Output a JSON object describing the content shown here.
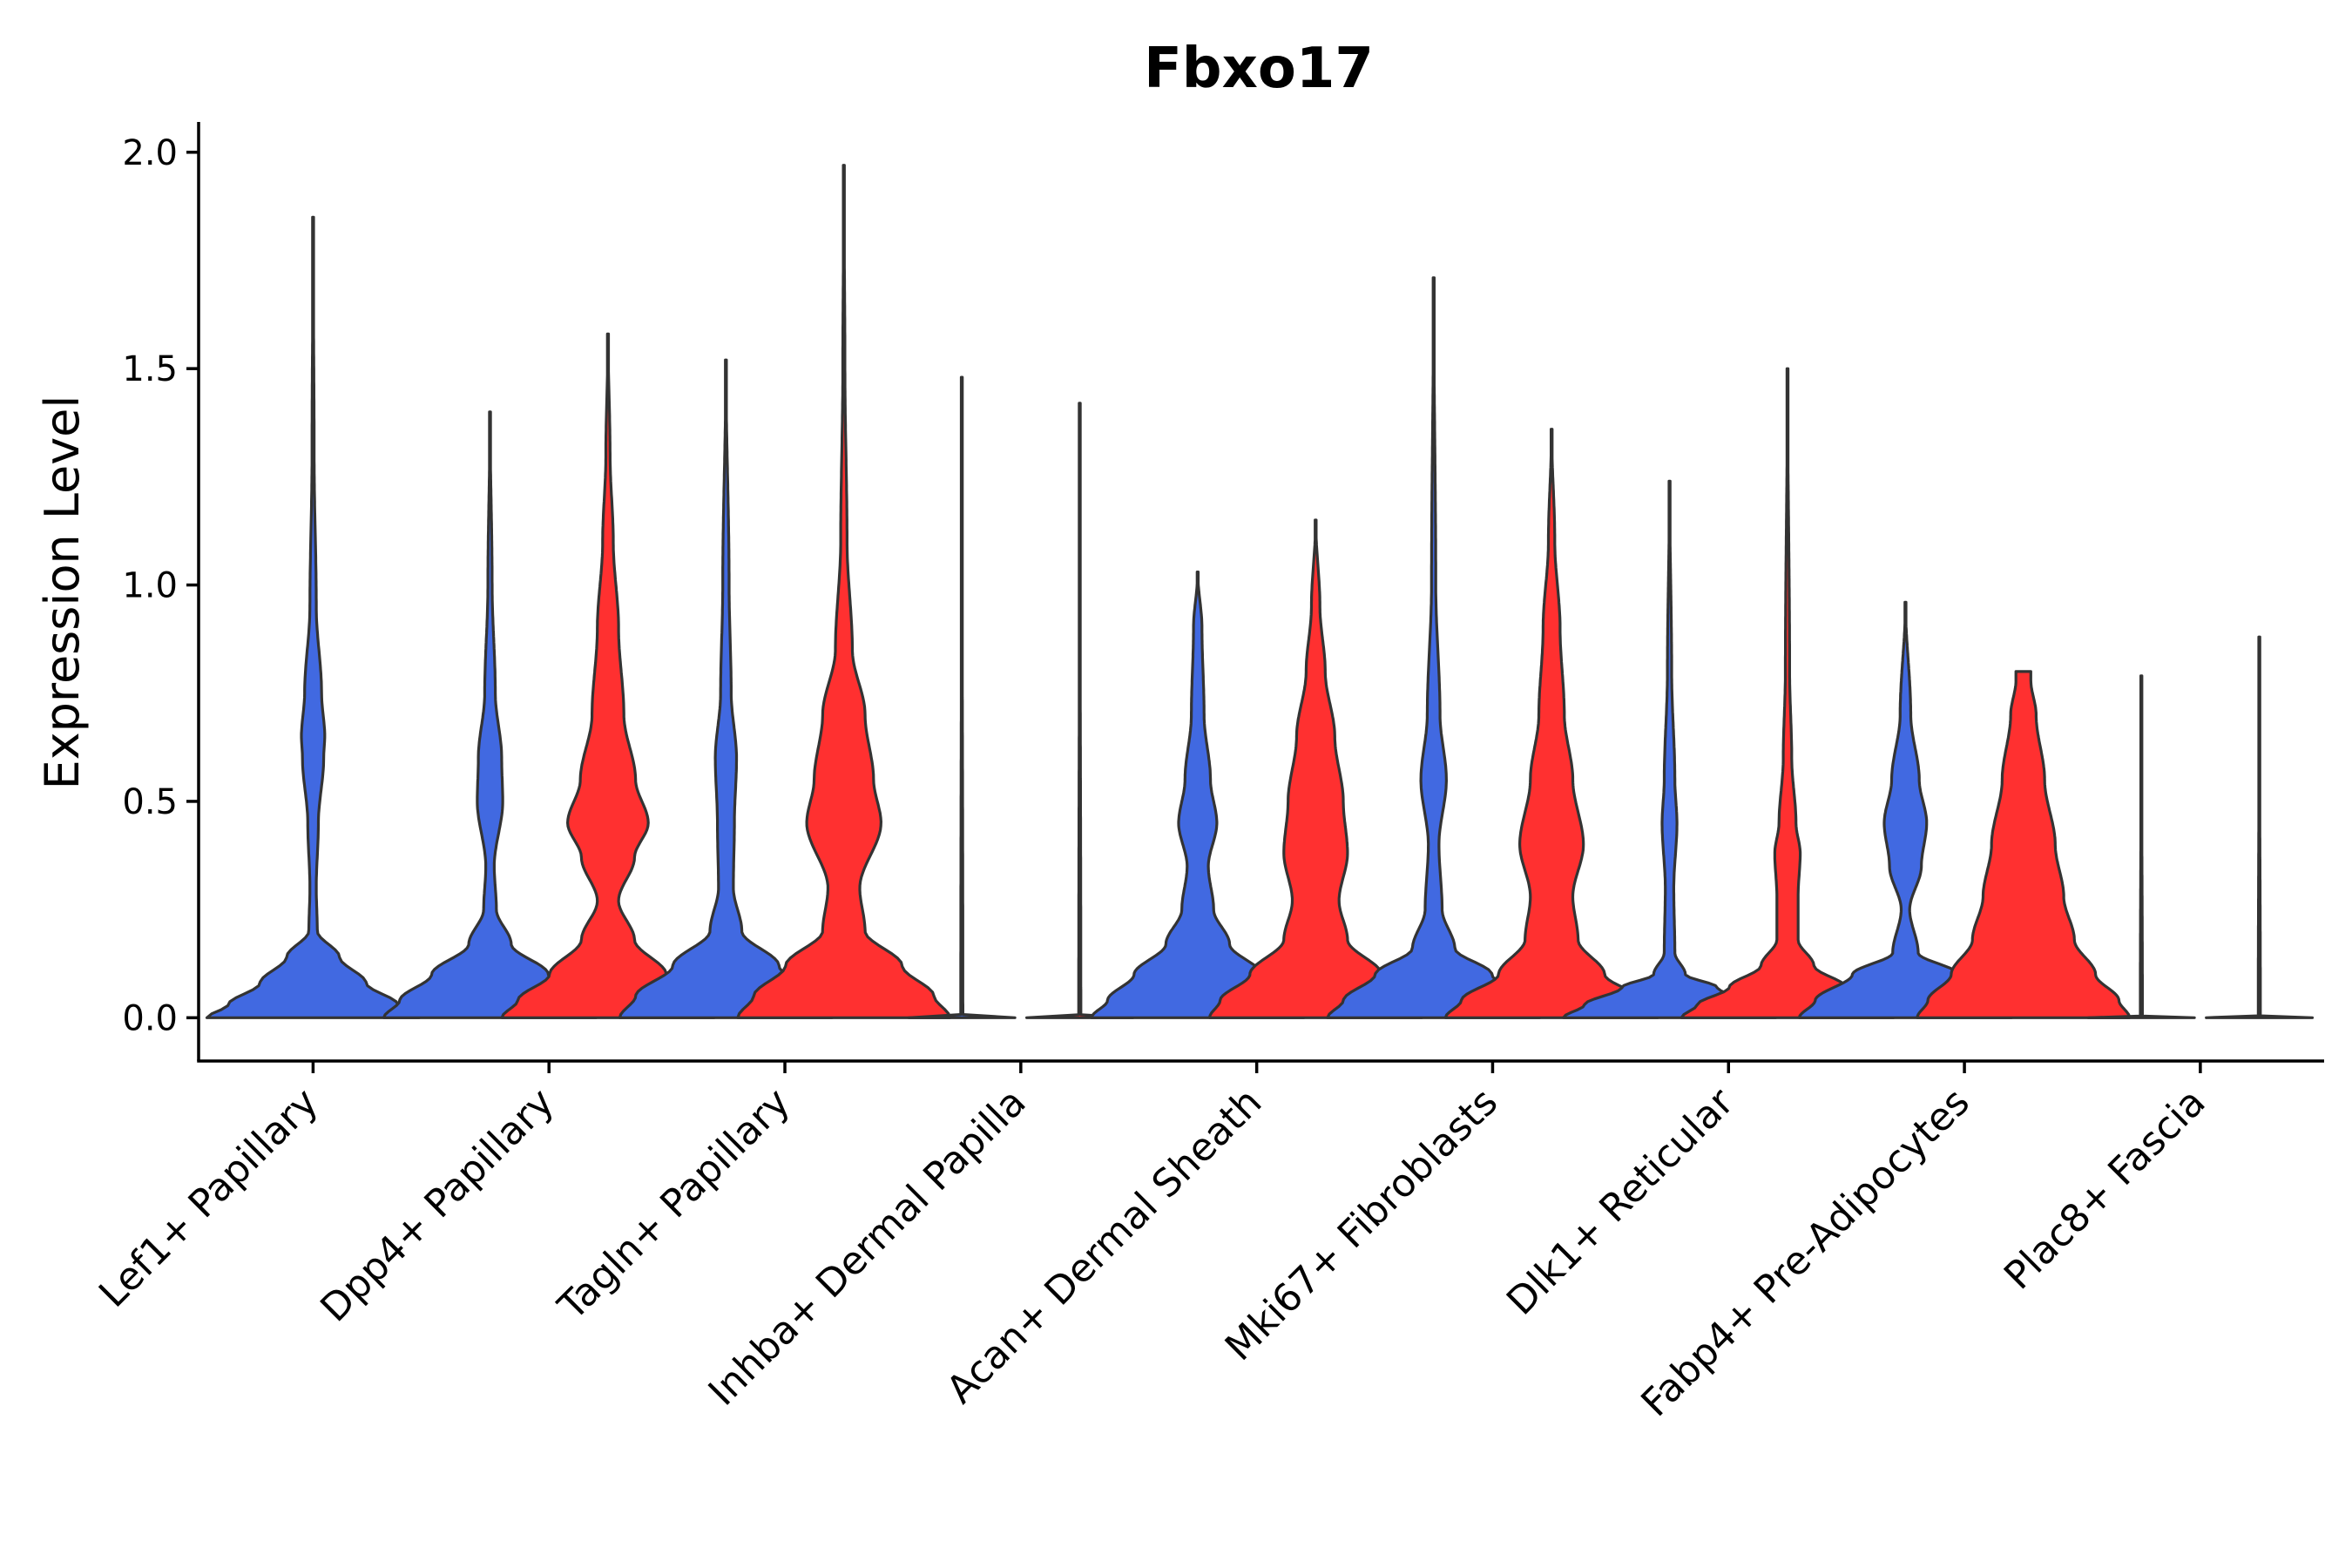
{
  "chart_data": {
    "type": "violin",
    "title": "Fbxo17",
    "ylabel": "Expression Level",
    "xlabel": "",
    "ylim": [
      -0.1,
      2.07
    ],
    "yticks": [
      0.0,
      0.5,
      1.0,
      1.5,
      2.0
    ],
    "ytick_labels": [
      "0.0",
      "0.5",
      "1.0",
      "1.5",
      "2.0"
    ],
    "categories": [
      "Lef1+ Papillary",
      "Dpp4+ Papillary",
      "Tagln+ Papillary",
      "Inhba+ Dermal Papilla",
      "Acan+ Dermal Sheath",
      "Mki67+ Fibroblasts",
      "Dlk1+ Reticular",
      "Fabp4+ Pre-Adipocytes",
      "Plac8+ Fascia"
    ],
    "colors": {
      "blue": "#4169E1",
      "red": "#FF3030"
    },
    "violins": [
      {
        "category": 0,
        "color": "blue",
        "offset": 0,
        "max": 1.85,
        "profile": [
          [
            0,
            1.0
          ],
          [
            0.03,
            0.8
          ],
          [
            0.08,
            0.5
          ],
          [
            0.14,
            0.25
          ],
          [
            0.2,
            0.04
          ],
          [
            0.3,
            0.03
          ],
          [
            0.45,
            0.05
          ],
          [
            0.6,
            0.1
          ],
          [
            0.65,
            0.11
          ],
          [
            0.75,
            0.08
          ],
          [
            0.95,
            0.03
          ],
          [
            1.3,
            0.01
          ],
          [
            1.85,
            0
          ]
        ]
      },
      {
        "category": 1,
        "color": "blue",
        "offset": -0.5,
        "max": 1.4,
        "profile": [
          [
            0,
            1.0
          ],
          [
            0.04,
            0.85
          ],
          [
            0.1,
            0.55
          ],
          [
            0.17,
            0.2
          ],
          [
            0.25,
            0.06
          ],
          [
            0.35,
            0.04
          ],
          [
            0.5,
            0.12
          ],
          [
            0.6,
            0.11
          ],
          [
            0.75,
            0.05
          ],
          [
            1.0,
            0.02
          ],
          [
            1.4,
            0
          ]
        ]
      },
      {
        "category": 1,
        "color": "red",
        "offset": 0.5,
        "max": 1.58,
        "profile": [
          [
            0,
            1.0
          ],
          [
            0.04,
            0.85
          ],
          [
            0.1,
            0.55
          ],
          [
            0.18,
            0.25
          ],
          [
            0.27,
            0.1
          ],
          [
            0.37,
            0.25
          ],
          [
            0.45,
            0.38
          ],
          [
            0.55,
            0.26
          ],
          [
            0.7,
            0.15
          ],
          [
            0.9,
            0.1
          ],
          [
            1.1,
            0.05
          ],
          [
            1.3,
            0.02
          ],
          [
            1.58,
            0
          ]
        ]
      },
      {
        "category": 2,
        "color": "blue",
        "offset": -0.5,
        "max": 1.52,
        "profile": [
          [
            0,
            1.0
          ],
          [
            0.05,
            0.85
          ],
          [
            0.12,
            0.5
          ],
          [
            0.2,
            0.15
          ],
          [
            0.3,
            0.07
          ],
          [
            0.45,
            0.08
          ],
          [
            0.6,
            0.1
          ],
          [
            0.75,
            0.05
          ],
          [
            1.0,
            0.03
          ],
          [
            1.52,
            0
          ]
        ]
      },
      {
        "category": 2,
        "color": "red",
        "offset": 0.5,
        "max": 1.97,
        "profile": [
          [
            0,
            1.0
          ],
          [
            0.05,
            0.85
          ],
          [
            0.12,
            0.55
          ],
          [
            0.2,
            0.2
          ],
          [
            0.3,
            0.15
          ],
          [
            0.45,
            0.35
          ],
          [
            0.55,
            0.28
          ],
          [
            0.7,
            0.2
          ],
          [
            0.85,
            0.08
          ],
          [
            1.1,
            0.03
          ],
          [
            1.5,
            0.01
          ],
          [
            1.97,
            0
          ]
        ]
      },
      {
        "category": 3,
        "color": "blue",
        "offset": -0.5,
        "max": 1.48,
        "profile": [
          [
            0,
            0.5
          ],
          [
            0.003,
            0.01
          ],
          [
            1.48,
            0
          ]
        ]
      },
      {
        "category": 3,
        "color": "red",
        "offset": 0.5,
        "max": 1.42,
        "profile": [
          [
            0,
            0.5
          ],
          [
            0.003,
            0.01
          ],
          [
            1.42,
            0
          ]
        ]
      },
      {
        "category": 4,
        "color": "blue",
        "offset": -0.5,
        "max": 1.03,
        "profile": [
          [
            0,
            1.0
          ],
          [
            0.04,
            0.85
          ],
          [
            0.1,
            0.6
          ],
          [
            0.17,
            0.3
          ],
          [
            0.25,
            0.15
          ],
          [
            0.35,
            0.1
          ],
          [
            0.45,
            0.18
          ],
          [
            0.55,
            0.12
          ],
          [
            0.7,
            0.06
          ],
          [
            0.9,
            0.04
          ],
          [
            1.03,
            0
          ]
        ]
      },
      {
        "category": 4,
        "color": "red",
        "offset": 0.5,
        "max": 1.15,
        "profile": [
          [
            0,
            1.0
          ],
          [
            0.04,
            0.9
          ],
          [
            0.1,
            0.62
          ],
          [
            0.18,
            0.3
          ],
          [
            0.27,
            0.22
          ],
          [
            0.38,
            0.3
          ],
          [
            0.5,
            0.26
          ],
          [
            0.65,
            0.18
          ],
          [
            0.8,
            0.09
          ],
          [
            0.95,
            0.04
          ],
          [
            1.15,
            0
          ]
        ]
      },
      {
        "category": 5,
        "color": "blue",
        "offset": -0.5,
        "max": 1.71,
        "profile": [
          [
            0,
            1.0
          ],
          [
            0.04,
            0.85
          ],
          [
            0.1,
            0.55
          ],
          [
            0.16,
            0.2
          ],
          [
            0.25,
            0.08
          ],
          [
            0.4,
            0.05
          ],
          [
            0.55,
            0.12
          ],
          [
            0.7,
            0.06
          ],
          [
            1.0,
            0.02
          ],
          [
            1.71,
            0
          ]
        ]
      },
      {
        "category": 5,
        "color": "red",
        "offset": 0.5,
        "max": 1.36,
        "profile": [
          [
            0,
            1.0
          ],
          [
            0.04,
            0.85
          ],
          [
            0.1,
            0.5
          ],
          [
            0.18,
            0.25
          ],
          [
            0.28,
            0.2
          ],
          [
            0.4,
            0.3
          ],
          [
            0.55,
            0.2
          ],
          [
            0.7,
            0.12
          ],
          [
            0.9,
            0.08
          ],
          [
            1.1,
            0.03
          ],
          [
            1.36,
            0
          ]
        ]
      },
      {
        "category": 6,
        "color": "blue",
        "offset": -0.5,
        "max": 1.24,
        "profile": [
          [
            0,
            1.0
          ],
          [
            0.03,
            0.8
          ],
          [
            0.07,
            0.45
          ],
          [
            0.1,
            0.15
          ],
          [
            0.15,
            0.05
          ],
          [
            0.3,
            0.04
          ],
          [
            0.45,
            0.07
          ],
          [
            0.55,
            0.05
          ],
          [
            0.8,
            0.02
          ],
          [
            1.24,
            0
          ]
        ]
      },
      {
        "category": 6,
        "color": "red",
        "offset": 0.5,
        "max": 1.5,
        "profile": [
          [
            0,
            1.0
          ],
          [
            0.03,
            0.85
          ],
          [
            0.07,
            0.55
          ],
          [
            0.12,
            0.25
          ],
          [
            0.18,
            0.1
          ],
          [
            0.28,
            0.1
          ],
          [
            0.38,
            0.12
          ],
          [
            0.45,
            0.08
          ],
          [
            0.6,
            0.04
          ],
          [
            0.8,
            0.02
          ],
          [
            1.5,
            0
          ]
        ]
      },
      {
        "category": 7,
        "color": "blue",
        "offset": -0.5,
        "max": 0.96,
        "profile": [
          [
            0,
            1.0
          ],
          [
            0.04,
            0.85
          ],
          [
            0.1,
            0.5
          ],
          [
            0.15,
            0.12
          ],
          [
            0.25,
            0.04
          ],
          [
            0.35,
            0.15
          ],
          [
            0.45,
            0.2
          ],
          [
            0.55,
            0.13
          ],
          [
            0.7,
            0.05
          ],
          [
            0.96,
            0
          ]
        ]
      },
      {
        "category": 7,
        "color": "red",
        "offset": 0.5,
        "max": 0.8,
        "profile": [
          [
            0,
            1.0
          ],
          [
            0.04,
            0.9
          ],
          [
            0.1,
            0.68
          ],
          [
            0.18,
            0.48
          ],
          [
            0.28,
            0.38
          ],
          [
            0.4,
            0.3
          ],
          [
            0.55,
            0.2
          ],
          [
            0.7,
            0.12
          ],
          [
            0.78,
            0.07
          ],
          [
            0.8,
            0.07
          ]
        ]
      },
      {
        "category": 8,
        "color": "blue",
        "offset": -0.5,
        "max": 0.79,
        "profile": [
          [
            0,
            0.5
          ],
          [
            0.003,
            0.01
          ],
          [
            0.79,
            0
          ]
        ]
      },
      {
        "category": 8,
        "color": "red",
        "offset": 0.5,
        "max": 0.88,
        "profile": [
          [
            0,
            0.5
          ],
          [
            0.003,
            0.01
          ],
          [
            0.88,
            0
          ]
        ]
      }
    ]
  }
}
